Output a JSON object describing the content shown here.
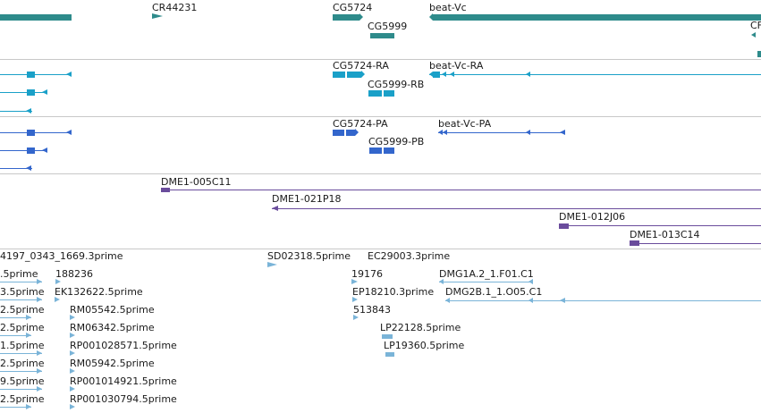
{
  "colors": {
    "gene": "#2e8b8b",
    "transcript": "#1aa0c8",
    "protein": "#3366cc",
    "clone": "#6a4c9c",
    "est": "#7ab4d8",
    "divider": "#c8c8c8"
  },
  "genes_track": {
    "labels": [
      "CR44231",
      "CG5724",
      "beat-Vc",
      "CG5999",
      "CF"
    ]
  },
  "transcripts_track": {
    "labels": [
      "CG5724-RA",
      "beat-Vc-RA",
      "CG5999-RB"
    ]
  },
  "proteins_track": {
    "labels": [
      "CG5724-PA",
      "beat-Vc-PA",
      "CG5999-PB"
    ]
  },
  "clones_track": {
    "labels": [
      "DME1-005C11",
      "DME1-021P18",
      "DME1-012J06",
      "DME1-013C14"
    ]
  },
  "est_track": {
    "labels": [
      "4197_0343_1669.3prime",
      "SD02318.5prime",
      "EC29003.3prime",
      ".5prime",
      "188236",
      "19176",
      "DMG1A.2_1.F01.C1",
      "3.5prime",
      "EK132622.5prime",
      "EP18210.3prime",
      "DMG2B.1_1.O05.C1",
      "2.5prime",
      "RM05542.5prime",
      "513843",
      "2.5prime",
      "RM06342.5prime",
      "LP22128.5prime",
      "1.5prime",
      "RP001028571.5prime",
      "LP19360.5prime",
      "2.5prime",
      "RM05942.5prime",
      "9.5prime",
      "RP001014921.5prime",
      "2.5prime",
      "RP001030794.5prime"
    ]
  }
}
